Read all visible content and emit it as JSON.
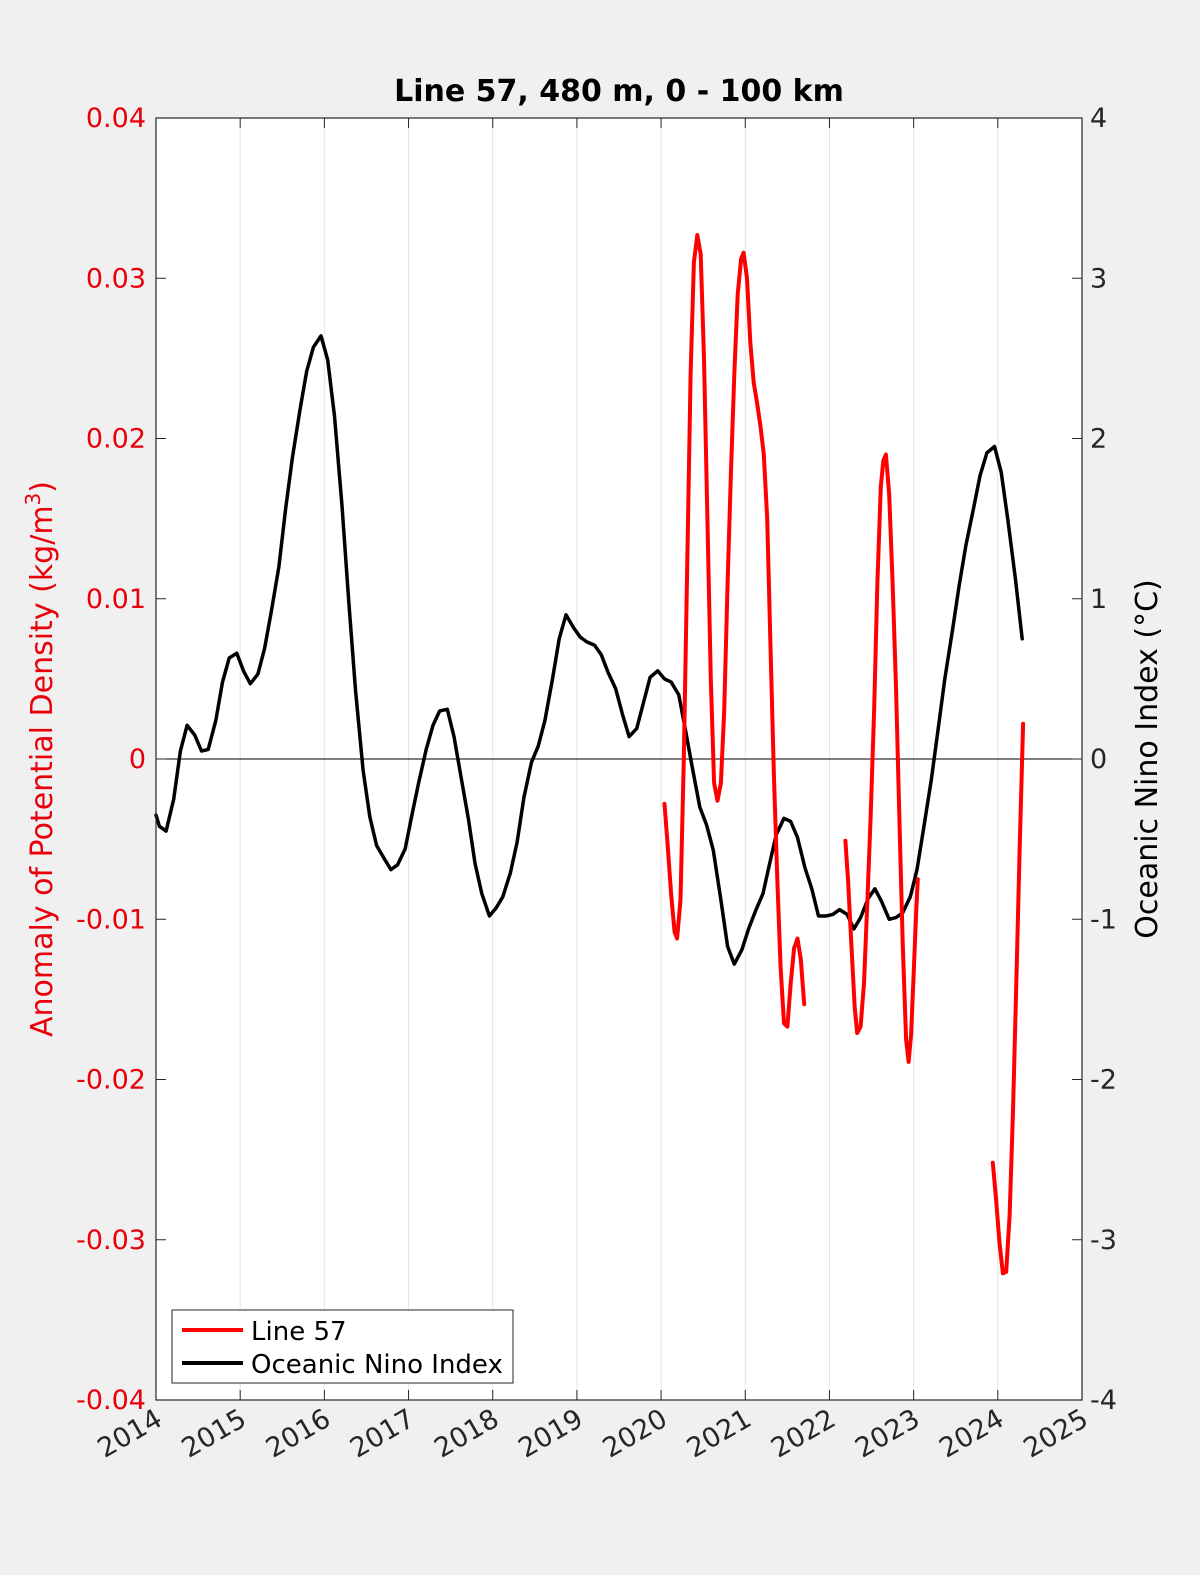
{
  "chart_data": {
    "type": "line",
    "title": "Line 57, 480 m, 0 - 100 km",
    "xlabel": "",
    "ylabel_left": "Anomaly of Potential Density (kg/m",
    "ylabel_left_sup": "3",
    "ylabel_left_close": ")",
    "ylabel_right": "Oceanic Nino Index (°C)",
    "xlim": [
      2014,
      2025
    ],
    "ylim_left": [
      -0.04,
      0.04
    ],
    "ylim_right": [
      -4,
      4
    ],
    "x_ticks": [
      2014,
      2015,
      2016,
      2017,
      2018,
      2019,
      2020,
      2021,
      2022,
      2023,
      2024,
      2025
    ],
    "x_tick_labels": [
      "2014",
      "2015",
      "2016",
      "2017",
      "2018",
      "2019",
      "2020",
      "2021",
      "2022",
      "2023",
      "2024",
      "2025"
    ],
    "y_left_ticks": [
      0.04,
      0.03,
      0.02,
      0.01,
      0,
      -0.01,
      -0.02,
      -0.03,
      -0.04
    ],
    "y_left_tick_labels": [
      "0.04",
      "0.03",
      "0.02",
      "0.01",
      "0",
      "-0.01",
      "-0.02",
      "-0.03",
      "-0.04"
    ],
    "y_right_ticks": [
      4,
      3,
      2,
      1,
      0,
      -1,
      -2,
      -3,
      -4
    ],
    "y_right_tick_labels": [
      "4",
      "3",
      "2",
      "1",
      "0",
      "-1",
      "-2",
      "-3",
      "-4"
    ],
    "grid": "vertical",
    "legend_position": "bottom-left",
    "colors": {
      "line57": "#ff0000",
      "oni": "#000000",
      "left_axis": "#e8000b",
      "background": "#f0f0f0"
    },
    "series": [
      {
        "name": "Line 57",
        "axis": "left",
        "color": "#ff0000",
        "segments": [
          [
            [
              2020.04,
              -0.0028
            ],
            [
              2020.08,
              -0.0055
            ],
            [
              2020.12,
              -0.0085
            ],
            [
              2020.16,
              -0.0108
            ],
            [
              2020.19,
              -0.0112
            ],
            [
              2020.23,
              -0.0088
            ],
            [
              2020.27,
              0.0
            ],
            [
              2020.31,
              0.012
            ],
            [
              2020.35,
              0.024
            ],
            [
              2020.39,
              0.031
            ],
            [
              2020.43,
              0.0327
            ],
            [
              2020.47,
              0.0315
            ],
            [
              2020.51,
              0.025
            ],
            [
              2020.55,
              0.015
            ],
            [
              2020.59,
              0.005
            ],
            [
              2020.63,
              -0.0015
            ],
            [
              2020.67,
              -0.0026
            ],
            [
              2020.71,
              -0.0015
            ],
            [
              2020.75,
              0.003
            ],
            [
              2020.79,
              0.011
            ],
            [
              2020.83,
              0.018
            ],
            [
              2020.87,
              0.024
            ],
            [
              2020.91,
              0.029
            ],
            [
              2020.95,
              0.0312
            ],
            [
              2020.98,
              0.0316
            ],
            [
              2021.02,
              0.03
            ],
            [
              2021.06,
              0.026
            ],
            [
              2021.1,
              0.0235
            ],
            [
              2021.14,
              0.0222
            ],
            [
              2021.18,
              0.0208
            ],
            [
              2021.22,
              0.019
            ],
            [
              2021.26,
              0.015
            ],
            [
              2021.3,
              0.007
            ],
            [
              2021.34,
              -0.001
            ],
            [
              2021.38,
              -0.0075
            ],
            [
              2021.42,
              -0.013
            ],
            [
              2021.46,
              -0.0165
            ],
            [
              2021.5,
              -0.0167
            ],
            [
              2021.54,
              -0.014
            ],
            [
              2021.58,
              -0.0118
            ],
            [
              2021.62,
              -0.0112
            ],
            [
              2021.66,
              -0.0125
            ],
            [
              2021.7,
              -0.0153
            ]
          ],
          [
            [
              2022.19,
              -0.0051
            ],
            [
              2022.22,
              -0.0075
            ],
            [
              2022.26,
              -0.0115
            ],
            [
              2022.3,
              -0.0155
            ],
            [
              2022.33,
              -0.0171
            ],
            [
              2022.37,
              -0.0167
            ],
            [
              2022.41,
              -0.014
            ],
            [
              2022.45,
              -0.009
            ],
            [
              2022.49,
              -0.0035
            ],
            [
              2022.53,
              0.003
            ],
            [
              2022.57,
              0.011
            ],
            [
              2022.61,
              0.017
            ],
            [
              2022.64,
              0.0186
            ],
            [
              2022.67,
              0.019
            ],
            [
              2022.71,
              0.0165
            ],
            [
              2022.75,
              0.011
            ],
            [
              2022.79,
              0.0045
            ],
            [
              2022.83,
              -0.0035
            ],
            [
              2022.87,
              -0.0115
            ],
            [
              2022.91,
              -0.0175
            ],
            [
              2022.94,
              -0.0189
            ],
            [
              2022.97,
              -0.0172
            ],
            [
              2023.0,
              -0.0135
            ],
            [
              2023.03,
              -0.0095
            ],
            [
              2023.05,
              -0.0075
            ]
          ],
          [
            [
              2023.94,
              -0.0252
            ],
            [
              2023.98,
              -0.0275
            ],
            [
              2024.02,
              -0.0302
            ],
            [
              2024.06,
              -0.0321
            ],
            [
              2024.1,
              -0.032
            ],
            [
              2024.14,
              -0.0285
            ],
            [
              2024.18,
              -0.022
            ],
            [
              2024.22,
              -0.014
            ],
            [
              2024.26,
              -0.0055
            ],
            [
              2024.3,
              0.0022
            ]
          ]
        ]
      },
      {
        "name": "Oceanic Nino Index",
        "axis": "right",
        "color": "#000000",
        "points": [
          [
            2014.0,
            -0.35
          ],
          [
            2014.04,
            -0.42
          ],
          [
            2014.12,
            -0.45
          ],
          [
            2014.21,
            -0.25
          ],
          [
            2014.29,
            0.05
          ],
          [
            2014.37,
            0.21
          ],
          [
            2014.46,
            0.15
          ],
          [
            2014.54,
            0.05
          ],
          [
            2014.62,
            0.06
          ],
          [
            2014.71,
            0.24
          ],
          [
            2014.79,
            0.48
          ],
          [
            2014.87,
            0.63
          ],
          [
            2014.96,
            0.66
          ],
          [
            2015.04,
            0.55
          ],
          [
            2015.12,
            0.47
          ],
          [
            2015.21,
            0.53
          ],
          [
            2015.29,
            0.69
          ],
          [
            2015.37,
            0.92
          ],
          [
            2015.46,
            1.2
          ],
          [
            2015.54,
            1.56
          ],
          [
            2015.62,
            1.88
          ],
          [
            2015.71,
            2.18
          ],
          [
            2015.79,
            2.42
          ],
          [
            2015.87,
            2.57
          ],
          [
            2015.96,
            2.64
          ],
          [
            2016.04,
            2.49
          ],
          [
            2016.12,
            2.14
          ],
          [
            2016.21,
            1.58
          ],
          [
            2016.29,
            0.98
          ],
          [
            2016.37,
            0.43
          ],
          [
            2016.46,
            -0.07
          ],
          [
            2016.54,
            -0.36
          ],
          [
            2016.62,
            -0.54
          ],
          [
            2016.71,
            -0.62
          ],
          [
            2016.79,
            -0.69
          ],
          [
            2016.87,
            -0.66
          ],
          [
            2016.96,
            -0.56
          ],
          [
            2017.04,
            -0.35
          ],
          [
            2017.12,
            -0.15
          ],
          [
            2017.21,
            0.06
          ],
          [
            2017.29,
            0.21
          ],
          [
            2017.37,
            0.3
          ],
          [
            2017.46,
            0.31
          ],
          [
            2017.54,
            0.14
          ],
          [
            2017.62,
            -0.1
          ],
          [
            2017.71,
            -0.37
          ],
          [
            2017.79,
            -0.65
          ],
          [
            2017.87,
            -0.84
          ],
          [
            2017.96,
            -0.98
          ],
          [
            2018.04,
            -0.93
          ],
          [
            2018.12,
            -0.86
          ],
          [
            2018.21,
            -0.71
          ],
          [
            2018.29,
            -0.52
          ],
          [
            2018.37,
            -0.24
          ],
          [
            2018.46,
            -0.02
          ],
          [
            2018.54,
            0.08
          ],
          [
            2018.62,
            0.24
          ],
          [
            2018.71,
            0.5
          ],
          [
            2018.79,
            0.75
          ],
          [
            2018.87,
            0.9
          ],
          [
            2018.96,
            0.82
          ],
          [
            2019.04,
            0.76
          ],
          [
            2019.12,
            0.73
          ],
          [
            2019.21,
            0.71
          ],
          [
            2019.29,
            0.65
          ],
          [
            2019.37,
            0.54
          ],
          [
            2019.46,
            0.44
          ],
          [
            2019.54,
            0.28
          ],
          [
            2019.62,
            0.14
          ],
          [
            2019.71,
            0.19
          ],
          [
            2019.79,
            0.35
          ],
          [
            2019.87,
            0.51
          ],
          [
            2019.96,
            0.55
          ],
          [
            2020.04,
            0.5
          ],
          [
            2020.12,
            0.48
          ],
          [
            2020.21,
            0.4
          ],
          [
            2020.29,
            0.18
          ],
          [
            2020.37,
            -0.05
          ],
          [
            2020.46,
            -0.3
          ],
          [
            2020.54,
            -0.41
          ],
          [
            2020.62,
            -0.57
          ],
          [
            2020.71,
            -0.88
          ],
          [
            2020.79,
            -1.17
          ],
          [
            2020.87,
            -1.28
          ],
          [
            2020.96,
            -1.19
          ],
          [
            2021.04,
            -1.06
          ],
          [
            2021.12,
            -0.95
          ],
          [
            2021.21,
            -0.84
          ],
          [
            2021.29,
            -0.65
          ],
          [
            2021.37,
            -0.47
          ],
          [
            2021.46,
            -0.37
          ],
          [
            2021.54,
            -0.39
          ],
          [
            2021.62,
            -0.49
          ],
          [
            2021.71,
            -0.68
          ],
          [
            2021.79,
            -0.81
          ],
          [
            2021.87,
            -0.98
          ],
          [
            2021.96,
            -0.98
          ],
          [
            2022.04,
            -0.97
          ],
          [
            2022.12,
            -0.94
          ],
          [
            2022.21,
            -0.97
          ],
          [
            2022.29,
            -1.06
          ],
          [
            2022.37,
            -0.99
          ],
          [
            2022.46,
            -0.87
          ],
          [
            2022.54,
            -0.81
          ],
          [
            2022.62,
            -0.89
          ],
          [
            2022.71,
            -1.0
          ],
          [
            2022.79,
            -0.99
          ],
          [
            2022.87,
            -0.96
          ],
          [
            2022.96,
            -0.86
          ],
          [
            2023.04,
            -0.69
          ],
          [
            2023.12,
            -0.43
          ],
          [
            2023.21,
            -0.13
          ],
          [
            2023.29,
            0.18
          ],
          [
            2023.37,
            0.5
          ],
          [
            2023.46,
            0.8
          ],
          [
            2023.54,
            1.08
          ],
          [
            2023.62,
            1.33
          ],
          [
            2023.71,
            1.56
          ],
          [
            2023.79,
            1.77
          ],
          [
            2023.87,
            1.91
          ],
          [
            2023.96,
            1.95
          ],
          [
            2024.04,
            1.79
          ],
          [
            2024.12,
            1.49
          ],
          [
            2024.21,
            1.12
          ],
          [
            2024.29,
            0.75
          ]
        ]
      }
    ]
  }
}
